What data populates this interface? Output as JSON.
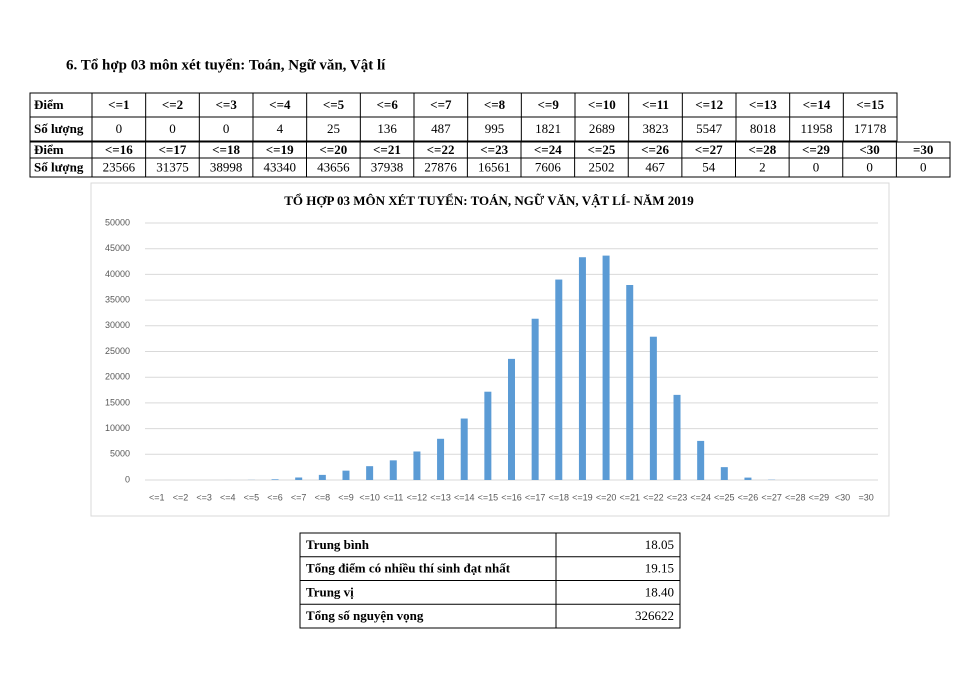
{
  "heading": "6. Tổ hợp 03 môn xét tuyển: Toán, Ngữ văn, Vật lí",
  "score_table": {
    "row_labels": [
      "Điểm",
      "Số lượng",
      "Điểm",
      "Số lượng"
    ]
  },
  "chart_data": {
    "type": "bar",
    "title": "TỔ HỢP 03 MÔN XÉT TUYỂN: TOÁN, NGỮ VĂN, VẬT LÍ- NĂM 2019",
    "categories": [
      "<=1",
      "<=2",
      "<=3",
      "<=4",
      "<=5",
      "<=6",
      "<=7",
      "<=8",
      "<=9",
      "<=10",
      "<=11",
      "<=12",
      "<=13",
      "<=14",
      "<=15",
      "<=16",
      "<=17",
      "<=18",
      "<=19",
      "<=20",
      "<=21",
      "<=22",
      "<=23",
      "<=24",
      "<=25",
      "<=26",
      "<=27",
      "<=28",
      "<=29",
      "<30",
      "=30"
    ],
    "values": [
      0,
      0,
      0,
      4,
      25,
      136,
      487,
      995,
      1821,
      2689,
      3823,
      5547,
      8018,
      11958,
      17178,
      23566,
      31375,
      38998,
      43340,
      43656,
      37938,
      27876,
      16561,
      7606,
      2502,
      467,
      54,
      2,
      0,
      0,
      0
    ],
    "color": "#5b9bd5",
    "ylim": [
      0,
      50000
    ],
    "yticks": [
      0,
      5000,
      10000,
      15000,
      20000,
      25000,
      30000,
      35000,
      40000,
      45000,
      50000
    ],
    "grid": true
  },
  "stats_table": {
    "rows": [
      [
        "Trung bình",
        "18.05"
      ],
      [
        "Tổng điểm có nhiều thí sinh đạt nhất",
        "19.15"
      ],
      [
        "Trung vị",
        "18.40"
      ],
      [
        "Tổng số nguyện vọng",
        "326622"
      ]
    ]
  }
}
